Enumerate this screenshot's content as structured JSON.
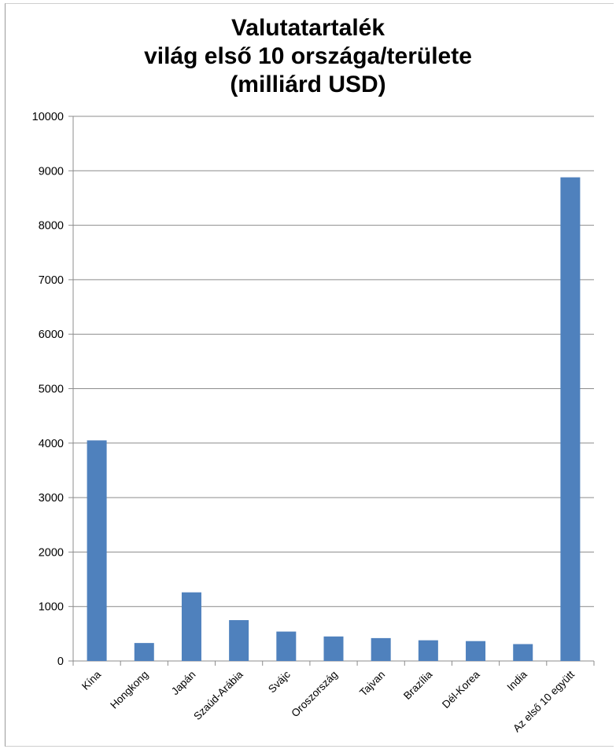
{
  "chart_data": {
    "type": "bar",
    "title": [
      "Valutatartalék",
      "világ első 10 országa/területe",
      "(milliárd USD)"
    ],
    "xlabel": "",
    "ylabel": "",
    "ylim": [
      0,
      10000
    ],
    "yticks": [
      0,
      1000,
      2000,
      3000,
      4000,
      5000,
      6000,
      7000,
      8000,
      9000,
      10000
    ],
    "grid": true,
    "legend": "none",
    "categories": [
      "Kína",
      "Hongkong",
      "Japán",
      "Szaúd-Arábia",
      "Svájc",
      "Oroszország",
      "Tajvan",
      "Brazília",
      "Dél-Korea",
      "India",
      "Az első 10 együtt"
    ],
    "values": [
      4050,
      330,
      1260,
      750,
      540,
      450,
      420,
      380,
      365,
      310,
      8880
    ],
    "bar_color": "#4f81bd",
    "grid_color": "#8c8c8c"
  }
}
